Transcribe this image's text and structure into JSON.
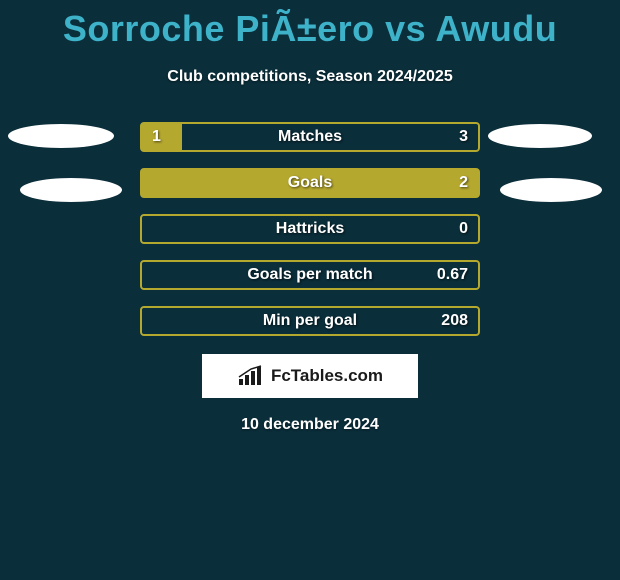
{
  "header": {
    "title": "Sorroche PiÃ±ero vs Awudu",
    "subtitle": "Club competitions, Season 2024/2025",
    "title_color": "#3db2c9",
    "subtitle_color": "#ffffff",
    "title_fontsize": 36,
    "subtitle_fontsize": 16
  },
  "background_color": "#0a2e3a",
  "bar_color": "#b5a82f",
  "stats": [
    {
      "label": "Matches",
      "left_value": "1",
      "right_value": "3",
      "left_fill_pct": 12,
      "right_fill_pct": 0
    },
    {
      "label": "Goals",
      "left_value": "",
      "right_value": "2",
      "left_fill_pct": 100,
      "right_fill_pct": 0
    },
    {
      "label": "Hattricks",
      "left_value": "",
      "right_value": "0",
      "left_fill_pct": 0,
      "right_fill_pct": 0
    },
    {
      "label": "Goals per match",
      "left_value": "",
      "right_value": "0.67",
      "left_fill_pct": 0,
      "right_fill_pct": 0
    },
    {
      "label": "Min per goal",
      "left_value": "",
      "right_value": "208",
      "left_fill_pct": 0,
      "right_fill_pct": 0
    }
  ],
  "brand": {
    "text": "FcTables.com"
  },
  "footer": {
    "date": "10 december 2024"
  },
  "chart_meta": {
    "type": "comparison-bars",
    "bar_track_width": 340,
    "bar_track_height": 30,
    "bar_border_radius": 4,
    "row_gap": 16,
    "text_color": "#ffffff",
    "text_fontsize": 16
  }
}
